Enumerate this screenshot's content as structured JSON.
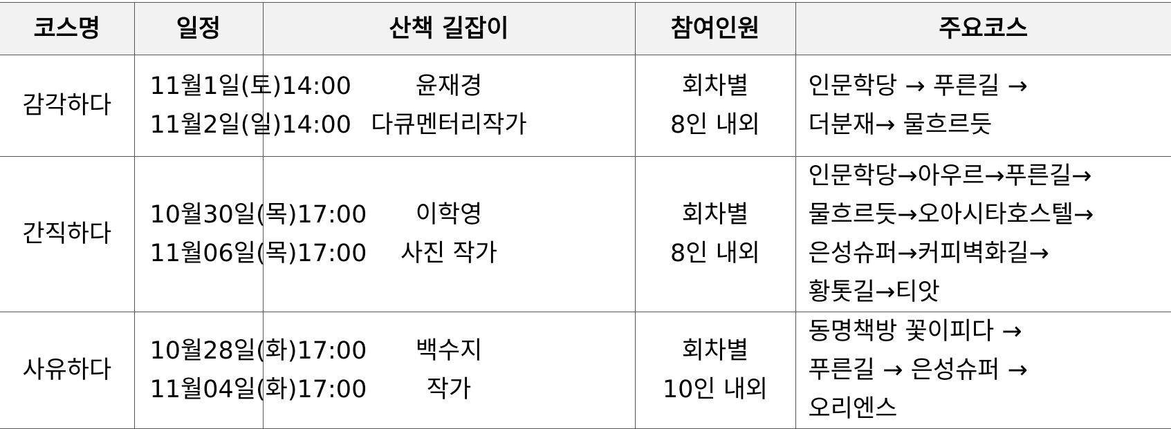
{
  "headers": [
    "코스명",
    "일정",
    "산책 길잡이",
    "참여인원",
    "주요코스"
  ],
  "rows": [
    {
      "course": "감각하다",
      "schedule": [
        "11월1일(토)14:00",
        "11월2일(일)14:00"
      ],
      "guide": [
        "윤재경",
        "다큐멘터리작가"
      ],
      "participants": [
        "회차별",
        "8인 내외"
      ],
      "route": [
        "인문학당 → 푸른길 →",
        "더분재→ 물흐르듯"
      ]
    },
    {
      "course": "간직하다",
      "schedule": [
        "10월30일(목)17:00",
        "11월06일(목)17:00"
      ],
      "guide": [
        "이학영",
        "사진 작가"
      ],
      "participants": [
        "회차별",
        "8인 내외"
      ],
      "route": [
        "인문학당→아우르→푸른길→",
        "물흐르듯→오아시타호스텔→",
        "은성슈퍼→커피벽화길→",
        "황톳길→티앗"
      ]
    },
    {
      "course": "사유하다",
      "schedule": [
        "10월28일(화)17:00",
        "11월04일(화)17:00"
      ],
      "guide": [
        "백수지",
        "작가"
      ],
      "participants": [
        "회차별",
        "10인 내외"
      ],
      "route": [
        "동명책방 꽃이피다 →",
        "푸른길 → 은성슈퍼 →",
        "오리엔스"
      ]
    }
  ]
}
